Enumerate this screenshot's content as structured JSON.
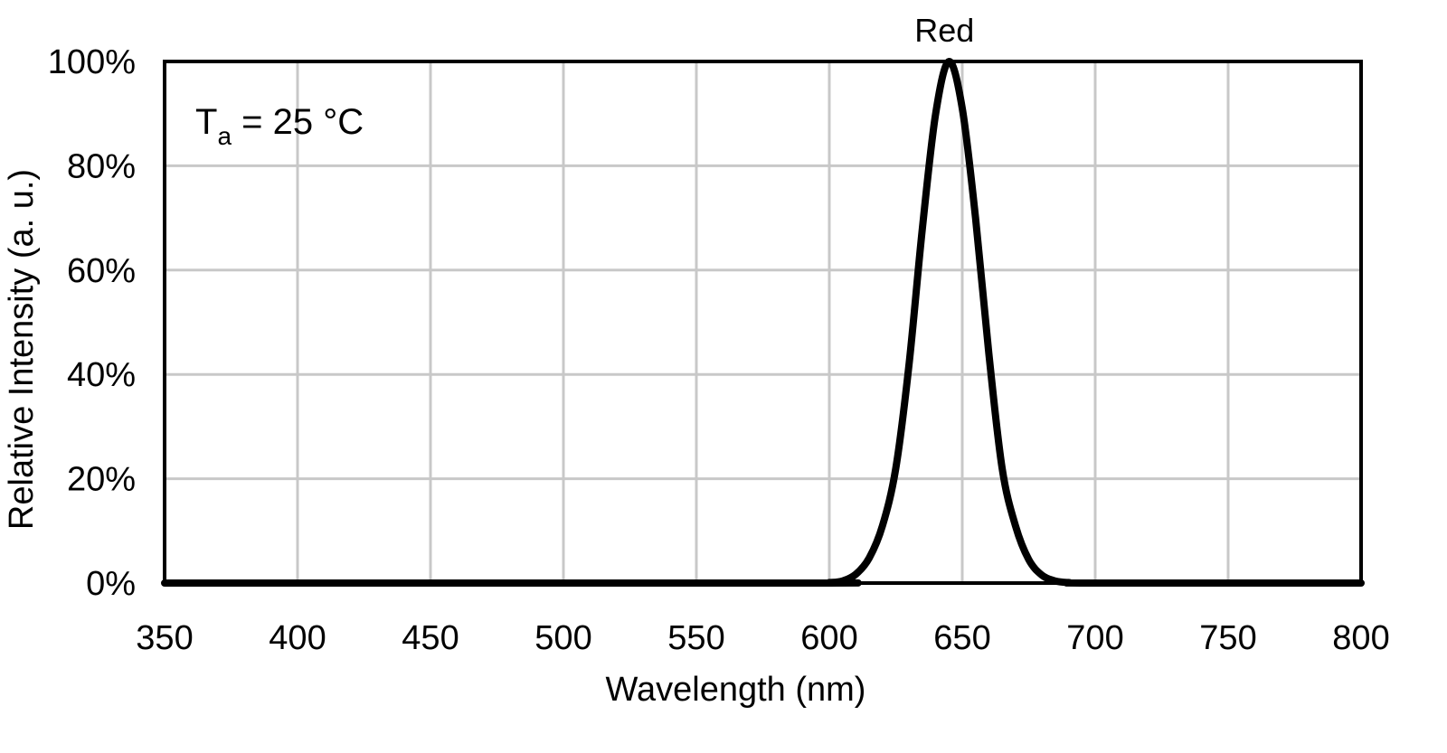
{
  "chart_data": {
    "type": "line",
    "xlabel": "Wavelength (nm)",
    "ylabel": "Relative Intensity (a. u.)",
    "xlim": [
      350,
      800
    ],
    "ylim": [
      0,
      100
    ],
    "x_ticks": [
      "350",
      "400",
      "450",
      "500",
      "550",
      "600",
      "650",
      "700",
      "750",
      "800"
    ],
    "y_ticks": [
      "0%",
      "20%",
      "40%",
      "60%",
      "80%",
      "100%"
    ],
    "grid": true,
    "annotation": {
      "main": "T",
      "sub": "a",
      "rest": " = 25 °C"
    },
    "series": [
      {
        "name": "Red",
        "x": [
          350,
          590,
          600,
          605,
          610,
          615,
          620,
          625,
          630,
          635,
          640,
          645,
          650,
          655,
          660,
          665,
          670,
          675,
          680,
          685,
          690,
          700,
          800
        ],
        "y": [
          0,
          0,
          0.1,
          0.4,
          1.7,
          4.8,
          11,
          22,
          42,
          68,
          90,
          100,
          91,
          70,
          44,
          22,
          11,
          4.5,
          1.5,
          0.4,
          0.1,
          0,
          0
        ]
      }
    ]
  }
}
